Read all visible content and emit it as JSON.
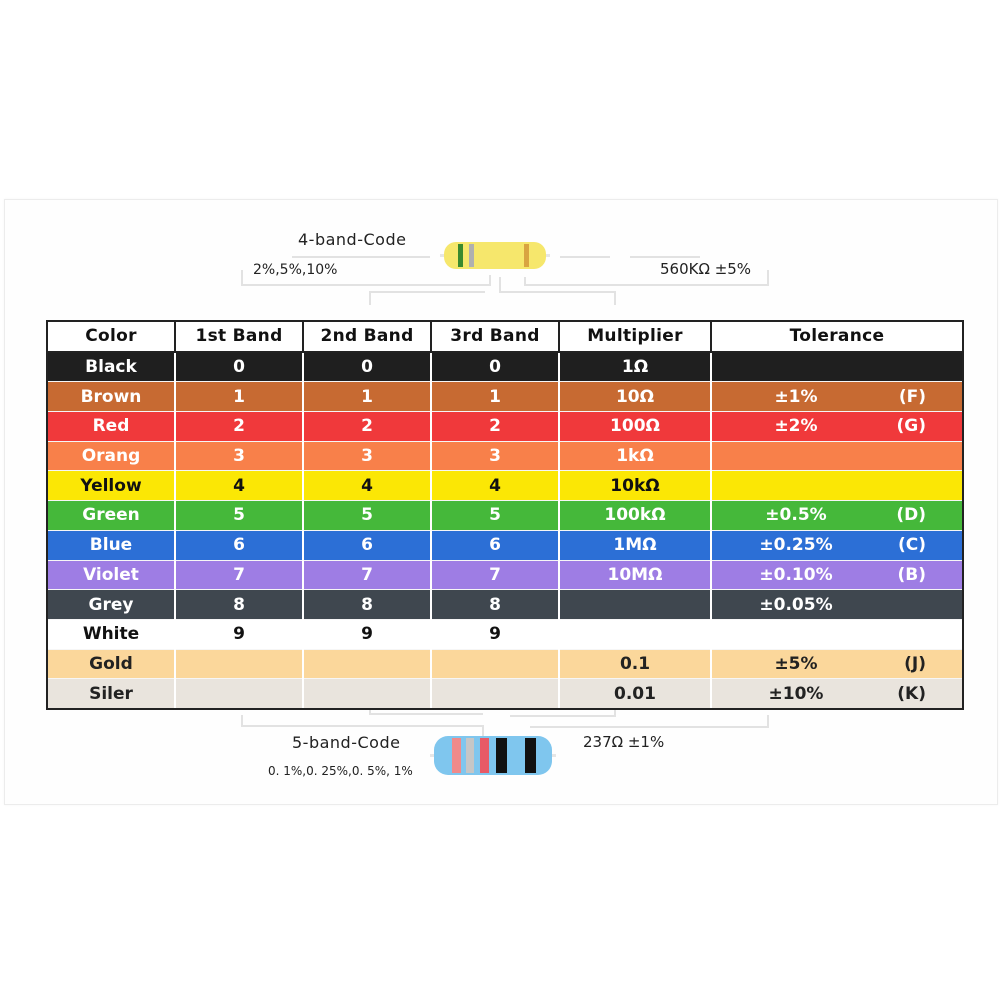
{
  "card": {
    "four_band": {
      "title": "4-band-Code",
      "tolerances": "2%,5%,10%",
      "example": "560KΩ ±5%"
    },
    "five_band": {
      "title": "5-band-Code",
      "tolerances": "0. 1%,0. 25%,0. 5%, 1%",
      "example": "237Ω ±1%"
    }
  },
  "table": {
    "headers": [
      "Color",
      "1st Band",
      "2nd Band",
      "3rd Band",
      "Multiplier",
      "Tolerance"
    ],
    "rows": [
      {
        "color": "Black",
        "b1": "0",
        "b2": "0",
        "b3": "0",
        "mult": "1Ω",
        "tol": "",
        "code": "",
        "bg": "#1f1f1f",
        "fg": "#ffffff"
      },
      {
        "color": "Brown",
        "b1": "1",
        "b2": "1",
        "b3": "1",
        "mult": "10Ω",
        "tol": "±1%",
        "code": "(F)",
        "bg": "#c76a32",
        "fg": "#ffffff"
      },
      {
        "color": "Red",
        "b1": "2",
        "b2": "2",
        "b3": "2",
        "mult": "100Ω",
        "tol": "±2%",
        "code": "(G)",
        "bg": "#f0393b",
        "fg": "#ffffff"
      },
      {
        "color": "Orang",
        "b1": "3",
        "b2": "3",
        "b3": "3",
        "mult": "1kΩ",
        "tol": "",
        "code": "",
        "bg": "#f8804a",
        "fg": "#ffffff"
      },
      {
        "color": "Yellow",
        "b1": "4",
        "b2": "4",
        "b3": "4",
        "mult": "10kΩ",
        "tol": "",
        "code": "",
        "bg": "#fbe705",
        "fg": "#111111"
      },
      {
        "color": "Green",
        "b1": "5",
        "b2": "5",
        "b3": "5",
        "mult": "100kΩ",
        "tol": "±0.5%",
        "code": "(D)",
        "bg": "#45b83a",
        "fg": "#ffffff"
      },
      {
        "color": "Blue",
        "b1": "6",
        "b2": "6",
        "b3": "6",
        "mult": "1MΩ",
        "tol": "±0.25%",
        "code": "(C)",
        "bg": "#2c6fd6",
        "fg": "#ffffff"
      },
      {
        "color": "Violet",
        "b1": "7",
        "b2": "7",
        "b3": "7",
        "mult": "10MΩ",
        "tol": "±0.10%",
        "code": "(B)",
        "bg": "#9e7de4",
        "fg": "#ffffff"
      },
      {
        "color": "Grey",
        "b1": "8",
        "b2": "8",
        "b3": "8",
        "mult": "",
        "tol": "±0.05%",
        "code": "",
        "bg": "#3f474f",
        "fg": "#ffffff"
      },
      {
        "color": "White",
        "b1": "9",
        "b2": "9",
        "b3": "9",
        "mult": "",
        "tol": "",
        "code": "",
        "bg": "#ffffff",
        "fg": "#111111"
      },
      {
        "color": "Gold",
        "b1": "",
        "b2": "",
        "b3": "",
        "mult": "0.1",
        "tol": "±5%",
        "code": "(J)",
        "bg": "#fbd79b",
        "fg": "#222222"
      },
      {
        "color": "Siler",
        "b1": "",
        "b2": "",
        "b3": "",
        "mult": "0.01",
        "tol": "±10%",
        "code": "(K)",
        "bg": "#e9e4dd",
        "fg": "#222222"
      }
    ]
  },
  "colors": {
    "resistor4_body": "#f6e76c",
    "resistor4_bands": [
      "#3a8a2e",
      "#b0b0b0",
      "#d9a441"
    ],
    "resistor5_body": "#7fc6ee",
    "resistor5_bands": [
      "#f08a8a",
      "#c6c6c6",
      "#e85a66",
      "#111111",
      "#111111"
    ]
  }
}
